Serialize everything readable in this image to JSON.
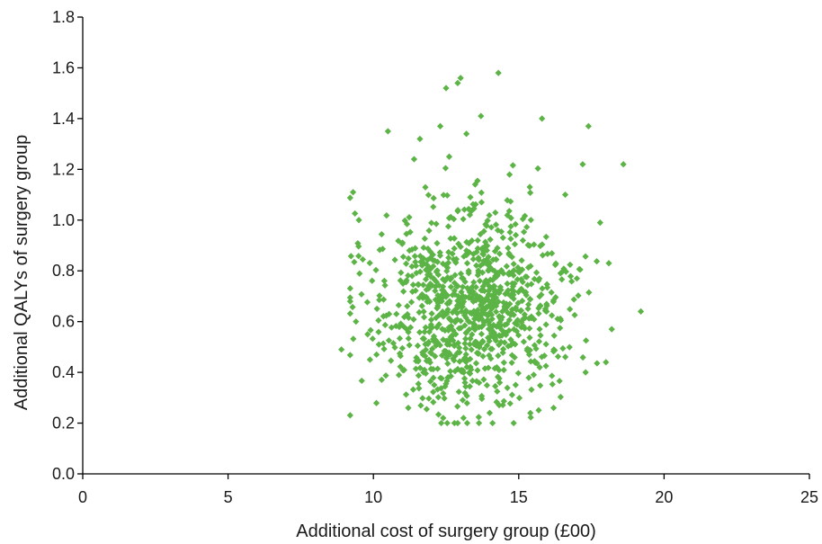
{
  "chart_data": {
    "type": "scatter",
    "title": "",
    "xlabel": "Additional cost of surgery group (£00)",
    "ylabel": "Additional QALYs of surgery group",
    "xlim": [
      0,
      25
    ],
    "ylim": [
      0,
      1.8
    ],
    "xticks": [
      "0",
      "5",
      "10",
      "15",
      "20",
      "25"
    ],
    "yticks": [
      "0.0",
      "0.2",
      "0.4",
      "0.6",
      "0.8",
      "1.0",
      "1.2",
      "1.4",
      "1.6",
      "1.8"
    ],
    "grid": false,
    "legend": "none",
    "marker": "diamond",
    "color": "#5cb346",
    "sample_size": 1000,
    "distribution": {
      "x_mean": 13.3,
      "x_sd": 1.6,
      "y_mean": 0.66,
      "y_sd": 0.2
    },
    "points": [
      [
        8.9,
        0.49
      ],
      [
        9.3,
        1.11
      ],
      [
        9.5,
        1.0
      ],
      [
        9.4,
        0.6
      ],
      [
        9.8,
        0.55
      ],
      [
        10.5,
        1.35
      ],
      [
        11.6,
        1.32
      ],
      [
        12.5,
        1.52
      ],
      [
        12.9,
        1.54
      ],
      [
        13.0,
        1.56
      ],
      [
        14.3,
        1.58
      ],
      [
        13.7,
        1.41
      ],
      [
        17.4,
        1.37
      ],
      [
        18.6,
        1.22
      ],
      [
        17.2,
        1.22
      ],
      [
        19.2,
        0.64
      ],
      [
        18.2,
        0.57
      ],
      [
        18.0,
        0.44
      ],
      [
        17.3,
        0.4
      ],
      [
        16.2,
        0.26
      ],
      [
        12.9,
        0.2
      ],
      [
        13.1,
        0.22
      ],
      [
        12.4,
        0.22
      ],
      [
        11.2,
        0.26
      ],
      [
        14.0,
        0.24
      ],
      [
        11.4,
        1.24
      ],
      [
        12.3,
        1.37
      ],
      [
        13.2,
        1.34
      ],
      [
        15.8,
        1.4
      ],
      [
        16.6,
        1.1
      ],
      [
        17.8,
        0.99
      ],
      [
        18.1,
        0.83
      ],
      [
        17.0,
        0.77
      ]
    ]
  }
}
